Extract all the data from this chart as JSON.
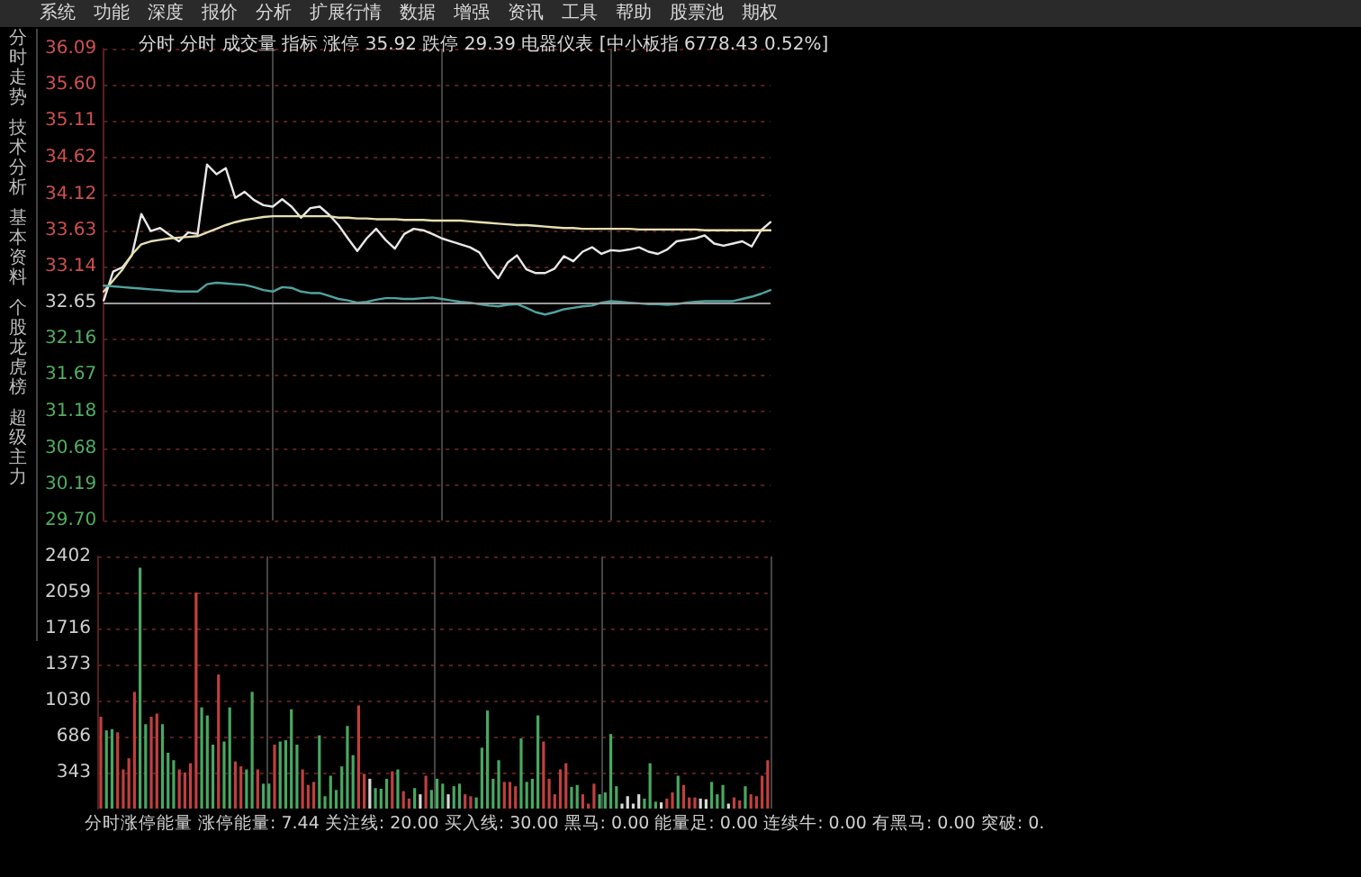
{
  "chart_data": [
    {
      "type": "line",
      "title": "分时 分时 成交量 指标 涨停 35.92 跌停 29.39 电器仪表 [中小板指 6778.43 0.52%]",
      "annotations": [
        "系统　功能　深度　报价　分析　扩展行情　数据　增强　资讯　工具　帮助　股票池　期权",
        "分时走势",
        "技术分析",
        "基本资料",
        "个股龙虎榜",
        "超级主力"
      ],
      "categories": [
        null,
        null,
        null,
        null,
        null,
        null,
        null,
        null,
        null,
        null,
        null,
        null,
        null,
        null,
        null,
        null,
        null,
        null,
        null,
        null,
        null,
        null,
        null,
        null,
        null,
        null,
        null,
        null,
        null,
        null,
        null,
        null,
        null,
        null,
        null,
        null,
        null,
        null,
        null,
        null,
        null,
        null,
        null,
        null,
        null,
        null,
        null,
        null,
        null,
        null,
        null,
        null,
        null,
        null,
        null,
        null,
        null,
        null,
        null,
        null,
        null,
        null,
        null,
        null,
        null,
        null,
        null,
        null,
        null,
        null,
        null,
        null
      ],
      "series": [
        {
          "color": "#e8e8e8",
          "values": [
            32.68,
            33.07,
            33.13,
            33.29,
            33.85,
            33.62,
            33.66,
            33.57,
            33.48,
            33.6,
            33.58,
            34.52,
            34.39,
            34.47,
            34.07,
            34.15,
            34.04,
            33.97,
            33.95,
            34.05,
            33.95,
            33.8,
            33.93,
            33.95,
            33.84,
            33.7,
            33.52,
            33.35,
            33.52,
            33.65,
            33.5,
            33.38,
            33.58,
            33.65,
            33.63,
            33.58,
            33.52,
            33.48,
            33.44,
            33.4,
            33.33,
            33.13,
            32.98,
            33.19,
            33.29,
            33.1,
            33.05,
            33.05,
            33.11,
            33.28,
            33.21,
            33.34,
            33.4,
            33.31,
            33.36,
            33.35,
            33.37,
            33.4,
            33.34,
            33.31,
            33.37,
            33.48,
            33.5,
            33.52,
            33.56,
            33.45,
            33.42,
            33.45,
            33.48,
            33.41,
            33.63,
            33.74
          ]
        },
        {
          "color": "#e6dfb0",
          "values": [
            32.8,
            32.95,
            33.1,
            33.3,
            33.44,
            33.48,
            33.5,
            33.52,
            33.53,
            33.54,
            33.55,
            33.6,
            33.65,
            33.7,
            33.74,
            33.77,
            33.79,
            33.81,
            33.82,
            33.82,
            33.82,
            33.82,
            33.82,
            33.82,
            33.82,
            33.8,
            33.8,
            33.79,
            33.79,
            33.78,
            33.78,
            33.78,
            33.77,
            33.77,
            33.77,
            33.76,
            33.76,
            33.76,
            33.76,
            33.75,
            33.74,
            33.73,
            33.72,
            33.71,
            33.7,
            33.7,
            33.69,
            33.68,
            33.67,
            33.66,
            33.66,
            33.65,
            33.65,
            33.65,
            33.65,
            33.65,
            33.65,
            33.64,
            33.64,
            33.64,
            33.64,
            33.64,
            33.64,
            33.64,
            33.63,
            33.63,
            33.63,
            33.63,
            33.63,
            33.63,
            33.63,
            33.63
          ]
        },
        {
          "color": "#4fa3a0",
          "values": [
            32.88,
            32.87,
            32.86,
            32.85,
            32.84,
            32.83,
            32.82,
            32.81,
            32.8,
            32.8,
            32.8,
            32.9,
            32.92,
            32.91,
            32.9,
            32.89,
            32.86,
            32.82,
            32.8,
            32.86,
            32.85,
            32.8,
            32.78,
            32.78,
            32.74,
            32.7,
            32.68,
            32.65,
            32.66,
            32.69,
            32.71,
            32.71,
            32.7,
            32.7,
            32.71,
            32.72,
            32.7,
            32.68,
            32.66,
            32.65,
            32.63,
            32.61,
            32.6,
            32.62,
            32.63,
            32.58,
            32.52,
            32.49,
            32.52,
            32.56,
            32.58,
            32.6,
            32.61,
            32.65,
            32.67,
            32.66,
            32.65,
            32.64,
            32.63,
            32.63,
            32.62,
            32.63,
            32.65,
            32.66,
            32.67,
            32.67,
            32.67,
            32.67,
            32.7,
            32.73,
            32.77,
            32.82
          ]
        }
      ],
      "ylim": [
        29.7,
        36.09
      ],
      "yticks": [
        {
          "value": 29.7,
          "label": "29.70"
        },
        30.19,
        30.68,
        31.18,
        31.67,
        32.16,
        32.65,
        33.14,
        33.63,
        34.12,
        34.62,
        35.11,
        {
          "value": 35.6,
          "label": "35.60"
        },
        36.09
      ],
      "ref_lines": [
        {
          "axis": "y",
          "value": 32.65,
          "color": "#9a9a9a"
        }
      ],
      "grid": true,
      "tick_labels": "y",
      "line_style": "solid"
    },
    {
      "type": "bar",
      "annotations": [
        "分时涨停能量 涨停能量: 7.44 关注线: 20.00 买入线: 30.00 黑马: 0.00 能量足: 0.00 连续牛: 0.00 有黑马: 0.00 突破: 0."
      ],
      "categories": [
        null,
        null,
        null,
        null,
        null,
        null,
        null,
        null,
        null,
        null,
        null,
        null,
        null,
        null,
        null,
        null,
        null,
        null,
        null,
        null,
        null,
        null,
        null,
        null,
        null,
        null,
        null,
        null,
        null,
        null,
        null,
        null,
        null,
        null,
        null,
        null,
        null,
        null,
        null,
        null,
        null,
        null,
        null,
        null,
        null,
        null,
        null,
        null,
        null,
        null,
        null,
        null,
        null,
        null,
        null,
        null,
        null,
        null,
        null,
        null,
        null,
        null,
        null,
        null,
        null,
        null,
        null,
        null,
        null,
        null,
        null,
        null,
        null,
        null,
        null,
        null,
        null,
        null,
        null,
        null,
        null,
        null,
        null,
        null,
        null,
        null,
        null,
        null,
        null,
        null,
        null,
        null,
        null,
        null,
        null,
        null,
        null,
        null,
        null,
        null,
        null,
        null,
        null,
        null,
        null,
        null,
        null,
        null,
        null,
        null,
        null,
        null,
        null,
        null,
        null,
        null,
        null,
        null,
        null,
        null
      ],
      "values": [
        875,
        745,
        757,
        727,
        373,
        479,
        1112,
        2295,
        804,
        875,
        905,
        804,
        532,
        461,
        373,
        343,
        432,
        2058,
        964,
        887,
        609,
        1277,
        639,
        964,
        449,
        402,
        373,
        1112,
        373,
        237,
        237,
        609,
        639,
        651,
        946,
        609,
        373,
        225,
        254,
        698,
        118,
        313,
        177,
        402,
        787,
        509,
        982,
        331,
        284,
        195,
        189,
        284,
        355,
        373,
        166,
        95,
        195,
        136,
        313,
        177,
        284,
        237,
        136,
        213,
        237,
        136,
        118,
        106,
        580,
        934,
        284,
        461,
        254,
        254,
        213,
        668,
        254,
        284,
        887,
        639,
        284,
        136,
        373,
        432,
        207,
        225,
        136,
        47,
        237,
        136,
        154,
        710,
        213,
        47,
        118,
        47,
        136,
        95,
        432,
        65,
        59,
        95,
        154,
        313,
        225,
        106,
        106,
        95,
        89,
        254,
        136,
        225,
        47,
        106,
        77,
        213,
        136,
        118,
        313,
        461
      ],
      "colors": [
        "#c0403f",
        "#48a862",
        "#48a862",
        "#c0403f",
        "#c0403f",
        "#c0403f",
        "#c0403f",
        "#48a862",
        "#48a862",
        "#c0403f",
        "#c0403f",
        "#48a862",
        "#48a862",
        "#48a862",
        "#c0403f",
        "#c0403f",
        "#c0403f",
        "#c0403f",
        "#48a862",
        "#48a862",
        "#48a862",
        "#c0403f",
        "#48a862",
        "#48a862",
        "#c0403f",
        "#c0403f",
        "#48a862",
        "#48a862",
        "#c0403f",
        "#48a862",
        "#48a862",
        "#c0403f",
        "#48a862",
        "#48a862",
        "#48a862",
        "#48a862",
        "#c0403f",
        "#c0403f",
        "#c0403f",
        "#48a862",
        "#48a862",
        "#48a862",
        "#48a862",
        "#48a862",
        "#48a862",
        "#48a862",
        "#c0403f",
        "#c0403f",
        "#d8d8d8",
        "#48a862",
        "#48a862",
        "#48a862",
        "#c0403f",
        "#48a862",
        "#c0403f",
        "#c0403f",
        "#48a862",
        "#d8d8d8",
        "#c0403f",
        "#48a862",
        "#48a862",
        "#48a862",
        "#d8d8d8",
        "#48a862",
        "#48a862",
        "#c0403f",
        "#c0403f",
        "#48a862",
        "#48a862",
        "#48a862",
        "#48a862",
        "#48a862",
        "#c0403f",
        "#c0403f",
        "#c0403f",
        "#48a862",
        "#48a862",
        "#48a862",
        "#48a862",
        "#c0403f",
        "#c0403f",
        "#c0403f",
        "#c0403f",
        "#c0403f",
        "#48a862",
        "#48a862",
        "#c0403f",
        "#c0403f",
        "#c0403f",
        "#48a862",
        "#48a862",
        "#48a862",
        "#48a862",
        "#d8d8d8",
        "#d8d8d8",
        "#d8d8d8",
        "#d8d8d8",
        "#48a862",
        "#48a862",
        "#48a862",
        "#d8d8d8",
        "#c0403f",
        "#c0403f",
        "#48a862",
        "#c0403f",
        "#c0403f",
        "#c0403f",
        "#d8d8d8",
        "#d8d8d8",
        "#48a862",
        "#48a862",
        "#48a862",
        "#d8d8d8",
        "#c0403f",
        "#c0403f",
        "#48a862",
        "#c0403f",
        "#c0403f",
        "#c0403f",
        "#c0403f"
      ],
      "ylim": [
        0,
        2402
      ],
      "yticks": [
        343,
        686,
        1030,
        1373,
        1716,
        2059,
        2402
      ],
      "grid": true,
      "tick_labels": "y"
    }
  ]
}
